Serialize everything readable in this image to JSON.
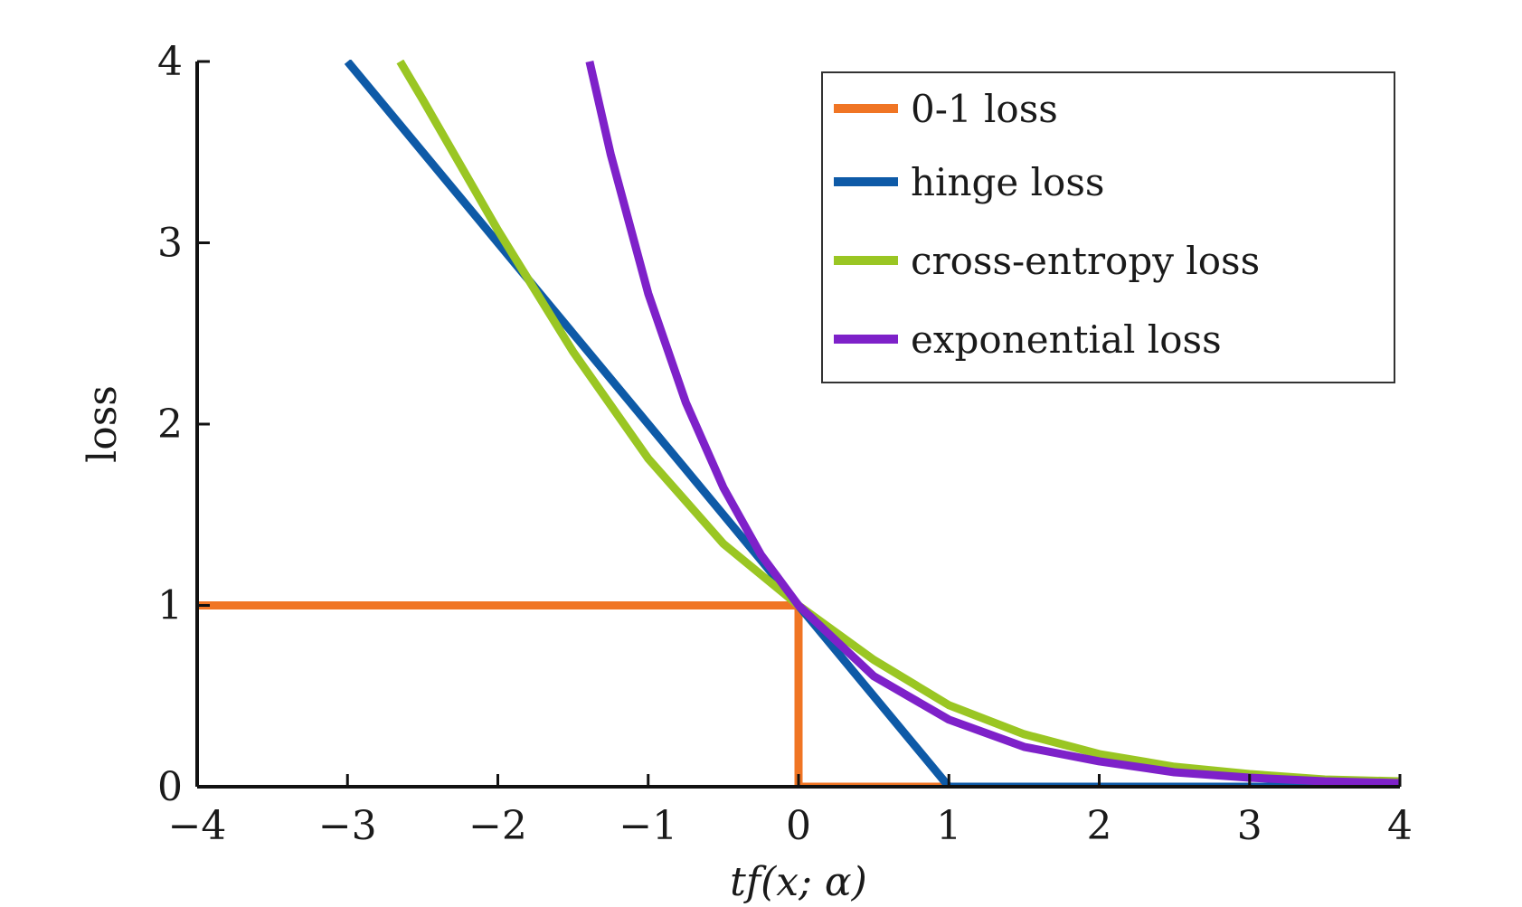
{
  "chart_data": {
    "type": "line",
    "xlabel": "tf(x; α)",
    "ylabel": "loss",
    "xlim": [
      -4,
      4
    ],
    "ylim": [
      0,
      4
    ],
    "xticks": [
      -4,
      -3,
      -2,
      -1,
      0,
      1,
      2,
      3,
      4
    ],
    "xtick_labels": [
      "−4",
      "−3",
      "−2",
      "−1",
      "0",
      "1",
      "2",
      "3",
      "4"
    ],
    "yticks": [
      0,
      1,
      2,
      3,
      4
    ],
    "ytick_labels": [
      "0",
      "1",
      "2",
      "3",
      "4"
    ],
    "grid": false,
    "legend_position": "top-right",
    "series": [
      {
        "name": "0-1 loss",
        "color": "#f07524",
        "x": [
          -4,
          0,
          0,
          1
        ],
        "y": [
          1,
          1,
          0,
          0
        ]
      },
      {
        "name": "hinge loss",
        "color": "#0e5aa7",
        "x": [
          -3,
          -2,
          -1,
          0,
          1,
          2,
          3,
          4
        ],
        "y": [
          4,
          3,
          2,
          1,
          0,
          0,
          0,
          0
        ]
      },
      {
        "name": "cross-entropy loss",
        "color": "#9ac623",
        "x": [
          -2.65,
          -2.5,
          -2,
          -1.5,
          -1,
          -0.5,
          0,
          0.5,
          1,
          1.5,
          2,
          2.5,
          3,
          3.5,
          4
        ],
        "y": [
          4.0,
          3.79,
          3.07,
          2.4,
          1.81,
          1.34,
          1.0,
          0.7,
          0.45,
          0.29,
          0.18,
          0.11,
          0.07,
          0.04,
          0.03
        ]
      },
      {
        "name": "exponential loss",
        "color": "#7e21c9",
        "x": [
          -1.39,
          -1.25,
          -1,
          -0.75,
          -0.5,
          -0.25,
          0,
          0.5,
          1,
          1.5,
          2,
          2.5,
          3,
          3.5,
          4
        ],
        "y": [
          4.0,
          3.49,
          2.72,
          2.12,
          1.65,
          1.28,
          1.0,
          0.61,
          0.37,
          0.22,
          0.14,
          0.08,
          0.05,
          0.03,
          0.02
        ]
      }
    ]
  }
}
